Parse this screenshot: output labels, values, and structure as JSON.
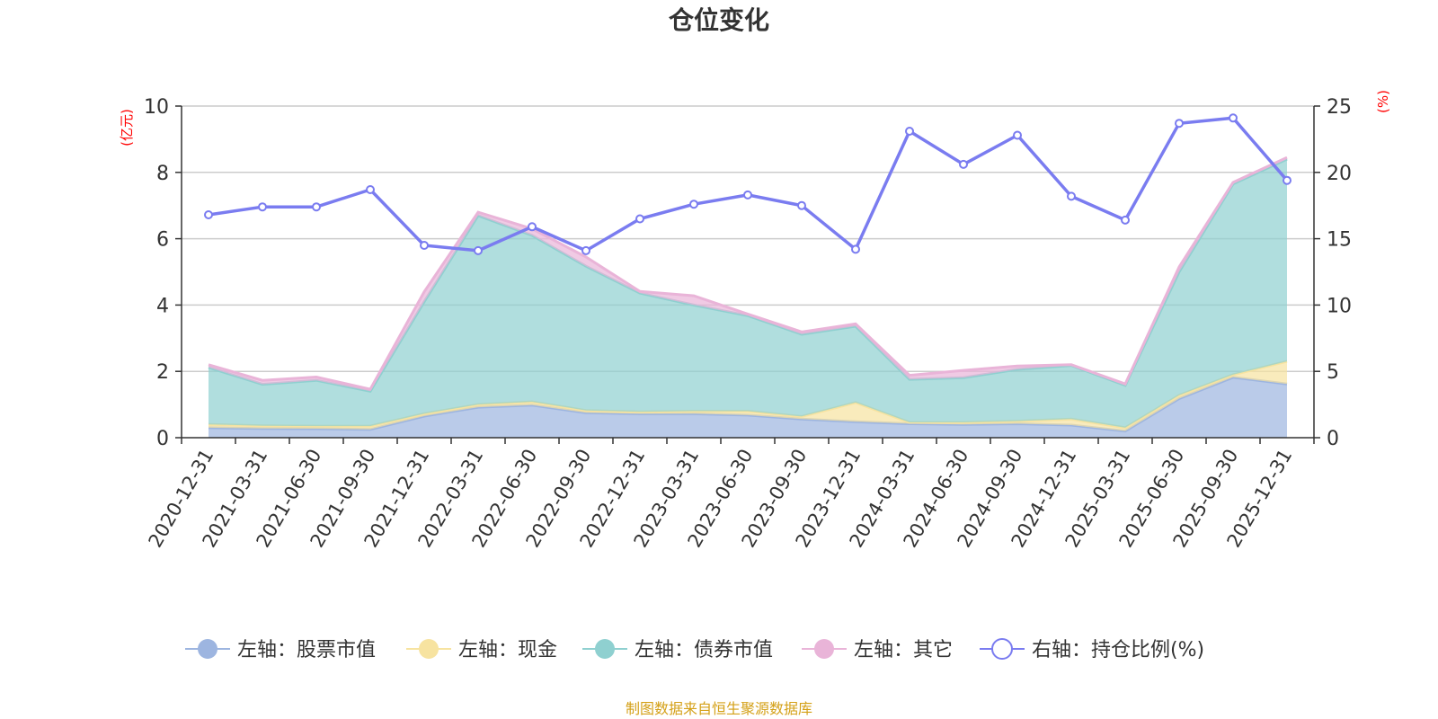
{
  "title": "仓位变化",
  "source": "制图数据来自恒生聚源数据库",
  "colors": {
    "stock": "#9db5e0",
    "cash": "#f7e3a0",
    "bond": "#8fd0d0",
    "other": "#e9b4d8",
    "ratio": "#7a7cf0",
    "unit": "#ff0000",
    "source": "#d4a017"
  },
  "chart_data": {
    "type": "area",
    "title": "仓位变化",
    "x": [
      "2020-12-31",
      "2021-03-31",
      "2021-06-30",
      "2021-09-30",
      "2021-12-31",
      "2022-03-31",
      "2022-06-30",
      "2022-09-30",
      "2022-12-31",
      "2023-03-31",
      "2023-06-30",
      "2023-09-30",
      "2023-12-31",
      "2024-03-31",
      "2024-06-30",
      "2024-09-30",
      "2024-12-31",
      "2025-03-31",
      "2025-06-30",
      "2025-09-30",
      "2025-12-31"
    ],
    "left_axis": {
      "unit": "(亿元)",
      "ylim": [
        0,
        10
      ],
      "ticks": [
        "0",
        "2",
        "4",
        "6",
        "8",
        "10"
      ]
    },
    "right_axis": {
      "unit": "(%)",
      "ylim": [
        0,
        25
      ],
      "ticks": [
        "0",
        "5",
        "10",
        "15",
        "20",
        "25"
      ]
    },
    "series": [
      {
        "name": "左轴：股票市值",
        "type": "area",
        "axis": "left",
        "color": "#9db5e0",
        "values": [
          0.3,
          0.28,
          0.27,
          0.25,
          0.65,
          0.92,
          0.98,
          0.75,
          0.72,
          0.72,
          0.68,
          0.56,
          0.48,
          0.42,
          0.4,
          0.42,
          0.38,
          0.2,
          1.18,
          1.82,
          1.62
        ]
      },
      {
        "name": "左轴：现金",
        "type": "area",
        "axis": "left",
        "color": "#f7e3a0",
        "values": [
          0.1,
          0.08,
          0.08,
          0.1,
          0.07,
          0.08,
          0.1,
          0.07,
          0.06,
          0.08,
          0.12,
          0.08,
          0.58,
          0.04,
          0.06,
          0.08,
          0.18,
          0.1,
          0.1,
          0.08,
          0.68
        ]
      },
      {
        "name": "左轴：债券市值",
        "type": "area",
        "axis": "left",
        "color": "#8fd0d0",
        "values": [
          1.72,
          1.25,
          1.38,
          1.05,
          3.38,
          5.7,
          5.02,
          4.35,
          3.58,
          3.2,
          2.88,
          2.48,
          2.3,
          1.3,
          1.35,
          1.56,
          1.62,
          1.28,
          3.72,
          5.75,
          6.1
        ]
      },
      {
        "name": "左轴：其它",
        "type": "area",
        "axis": "left",
        "color": "#e9b4d8",
        "values": [
          0.08,
          0.12,
          0.1,
          0.06,
          0.3,
          0.1,
          0.2,
          0.28,
          0.05,
          0.28,
          0.05,
          0.07,
          0.07,
          0.12,
          0.22,
          0.1,
          0.02,
          0.04,
          0.15,
          0.05,
          0.05
        ]
      },
      {
        "name": "右轴：持仓比例(%)",
        "type": "line",
        "axis": "right",
        "color": "#7a7cf0",
        "values": [
          16.8,
          17.4,
          17.4,
          18.7,
          14.5,
          14.1,
          15.9,
          14.1,
          16.5,
          17.6,
          18.3,
          17.5,
          14.2,
          23.1,
          20.6,
          22.8,
          18.2,
          16.4,
          23.7,
          24.1,
          19.4
        ]
      }
    ]
  }
}
